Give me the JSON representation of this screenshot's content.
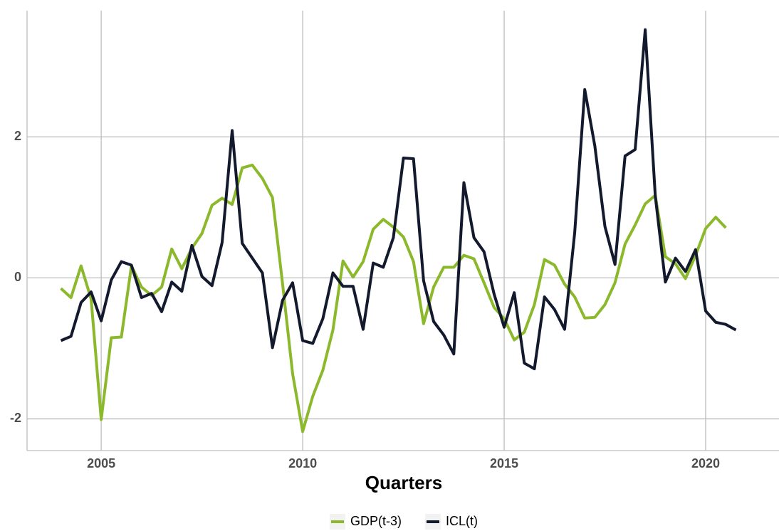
{
  "chart_data": {
    "type": "line",
    "x_label": "Quarters",
    "x": [
      2004,
      2004.25,
      2004.5,
      2004.75,
      2005,
      2005.25,
      2005.5,
      2005.75,
      2006,
      2006.25,
      2006.5,
      2006.75,
      2007,
      2007.25,
      2007.5,
      2007.75,
      2008,
      2008.25,
      2008.5,
      2008.75,
      2009,
      2009.25,
      2009.5,
      2009.75,
      2010,
      2010.25,
      2010.5,
      2010.75,
      2011,
      2011.25,
      2011.5,
      2011.75,
      2012,
      2012.25,
      2012.5,
      2012.75,
      2013,
      2013.25,
      2013.5,
      2013.75,
      2014,
      2014.25,
      2014.5,
      2014.75,
      2015,
      2015.25,
      2015.5,
      2015.75,
      2016,
      2016.25,
      2016.5,
      2016.75,
      2017,
      2017.25,
      2017.5,
      2017.75,
      2018,
      2018.25,
      2018.5,
      2018.75,
      2019,
      2019.25,
      2019.5,
      2019.75,
      2020,
      2020.25,
      2020.5,
      2020.75
    ],
    "series": [
      {
        "name": "GDP(t-3)",
        "color": "#8cb82b",
        "values": [
          -0.15,
          -0.28,
          0.17,
          -0.3,
          -2.01,
          -0.85,
          -0.84,
          0.17,
          -0.13,
          -0.25,
          -0.13,
          0.41,
          0.13,
          0.42,
          0.63,
          1.03,
          1.13,
          1.04,
          1.56,
          1.6,
          1.41,
          1.14,
          -0.08,
          -1.36,
          -2.18,
          -1.68,
          -1.31,
          -0.74,
          0.24,
          0.01,
          0.23,
          0.69,
          0.83,
          0.72,
          0.58,
          0.23,
          -0.65,
          -0.13,
          0.15,
          0.15,
          0.32,
          0.27,
          -0.07,
          -0.42,
          -0.58,
          -0.88,
          -0.77,
          -0.38,
          0.26,
          0.18,
          -0.09,
          -0.27,
          -0.57,
          -0.56,
          -0.38,
          -0.07,
          0.48,
          0.75,
          1.05,
          1.17,
          0.3,
          0.2,
          -0.01,
          0.32,
          0.7,
          0.86,
          0.71,
          null
        ]
      },
      {
        "name": "ICL(t)",
        "color": "#141a2e",
        "values": [
          -0.89,
          -0.83,
          -0.35,
          -0.2,
          -0.61,
          -0.03,
          0.23,
          0.18,
          -0.28,
          -0.22,
          -0.48,
          -0.06,
          -0.19,
          0.46,
          0.02,
          -0.11,
          0.5,
          2.09,
          0.49,
          0.28,
          0.07,
          -0.99,
          -0.32,
          -0.07,
          -0.89,
          -0.93,
          -0.58,
          0.07,
          -0.12,
          -0.12,
          -0.73,
          0.21,
          0.15,
          0.57,
          1.7,
          1.69,
          -0.04,
          -0.62,
          -0.81,
          -1.08,
          1.35,
          0.57,
          0.37,
          -0.23,
          -0.7,
          -0.21,
          -1.21,
          -1.29,
          -0.27,
          -0.45,
          -0.73,
          0.64,
          2.67,
          1.87,
          0.73,
          0.19,
          1.73,
          1.82,
          3.52,
          1.16,
          -0.06,
          0.28,
          0.09,
          0.4,
          -0.47,
          -0.63,
          -0.66,
          -0.74
        ]
      }
    ],
    "xlim": [
      2003.16,
      2021.82
    ],
    "ylim": [
      -2.45,
      3.79
    ],
    "xticks": [
      2005,
      2010,
      2015,
      2020
    ],
    "yticks": [
      -2,
      0,
      2
    ],
    "grid": true,
    "legend": "bottom"
  }
}
